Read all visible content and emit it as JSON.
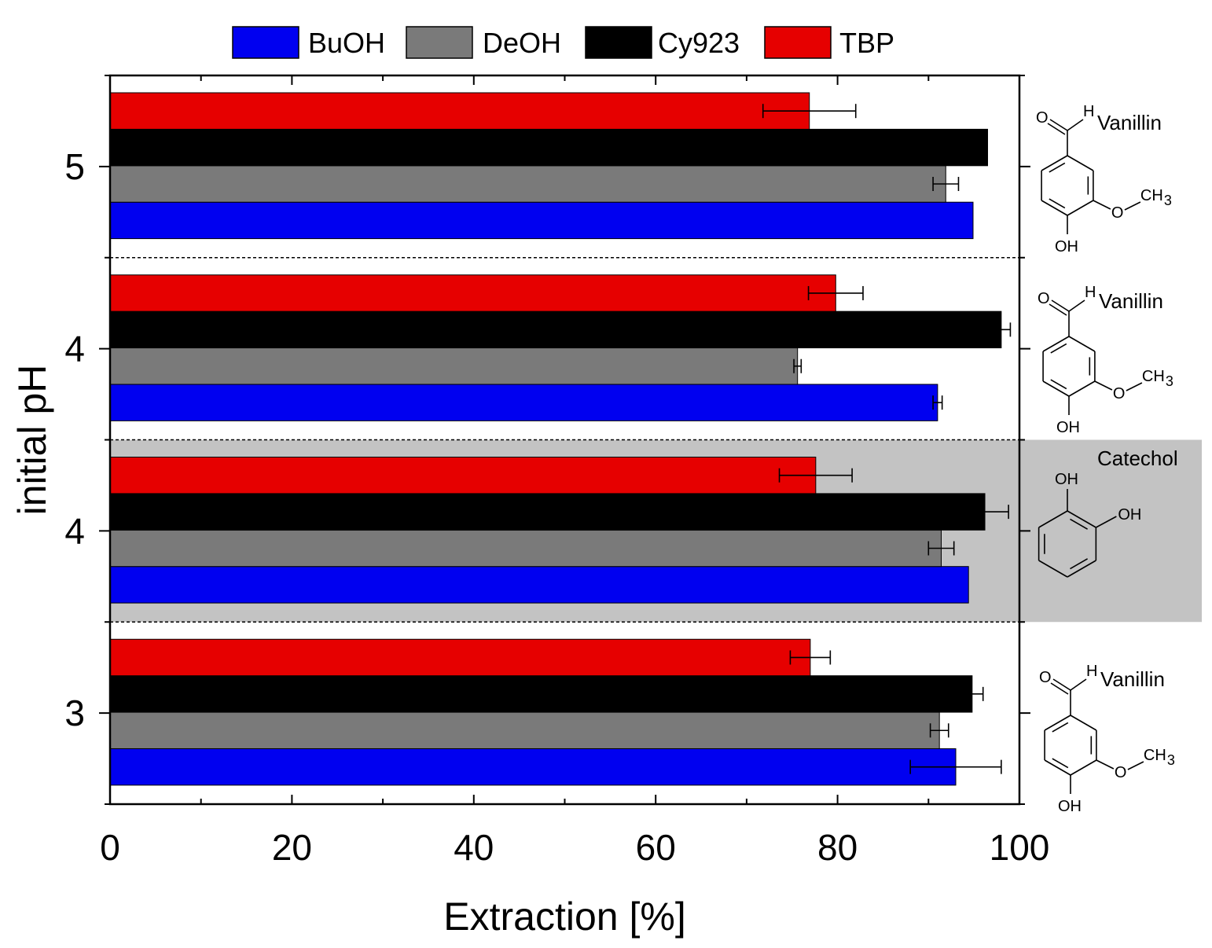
{
  "chart_data": {
    "type": "bar",
    "orientation": "horizontal",
    "title": "",
    "xlabel": "Extraction [%]",
    "ylabel": "initial pH",
    "xlim": [
      0,
      100
    ],
    "x_ticks": [
      "0",
      "20",
      "40",
      "60",
      "80",
      "100"
    ],
    "categories": [
      "3",
      "4",
      "4",
      "5"
    ],
    "compounds": [
      "Vanillin",
      "Catechol",
      "Vanillin",
      "Vanillin"
    ],
    "highlighted_group": 1,
    "legend_position": "top",
    "series": [
      {
        "name": "BuOH",
        "color": "#0000f0",
        "values": [
          93.0,
          94.4,
          91.0,
          94.9
        ],
        "errors": [
          5.0,
          0.0,
          0.5,
          0.0
        ]
      },
      {
        "name": "DeOH",
        "color": "#7a7a7a",
        "values": [
          91.2,
          91.4,
          75.6,
          91.9
        ],
        "errors": [
          1.0,
          1.4,
          0.4,
          1.4
        ]
      },
      {
        "name": "Cy923",
        "color": "#000000",
        "values": [
          94.8,
          96.2,
          98.0,
          96.5
        ],
        "errors": [
          1.2,
          2.6,
          1.0,
          0.0
        ]
      },
      {
        "name": "TBP",
        "color": "#e60000",
        "values": [
          77.0,
          77.6,
          79.8,
          76.9
        ],
        "errors": [
          2.2,
          4.0,
          3.0,
          5.1
        ]
      }
    ],
    "structure_labels": {
      "aldehyde_H": "H",
      "aldehyde_O": "O",
      "methoxy_O": "O",
      "methyl": "CH",
      "methyl_sub": "3",
      "hydroxyl": "OH"
    }
  }
}
